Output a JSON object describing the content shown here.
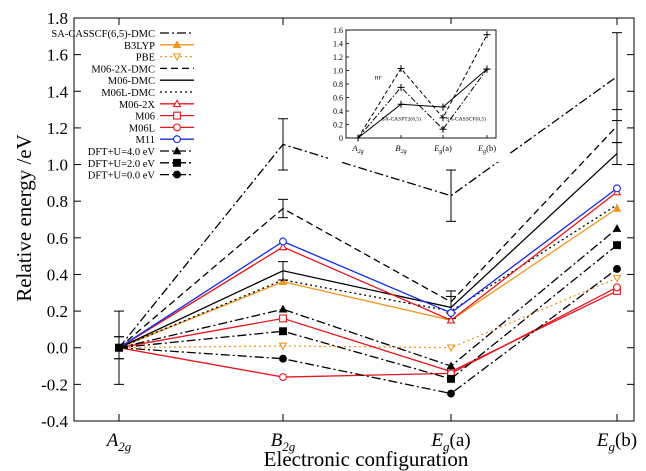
{
  "chart_data": {
    "type": "line",
    "title": "",
    "xlabel": "Electronic configuration",
    "ylabel": "Relative energy /eV",
    "categories": [
      {
        "base": "A",
        "sub": "2g",
        "suffix": ""
      },
      {
        "base": "B",
        "sub": "2g",
        "suffix": ""
      },
      {
        "base": "E",
        "sub": "g",
        "suffix": "(a)"
      },
      {
        "base": "E",
        "sub": "g",
        "suffix": "(b)"
      }
    ],
    "ylim": [
      -0.4,
      1.8
    ],
    "yticks": [
      "-0.4",
      "-0.2",
      "0.0",
      "0.2",
      "0.4",
      "0.6",
      "0.8",
      "1.0",
      "1.2",
      "1.4",
      "1.6",
      "1.8"
    ],
    "legend_position": "top-left",
    "series": [
      {
        "name": "SA-CASSCF(6,5)-DMC",
        "color": "#000000",
        "dash": "dashdot",
        "marker": "none",
        "values": [
          0.0,
          1.11,
          0.83,
          1.48
        ],
        "errors": [
          0.2,
          0.14,
          0.14,
          0.24
        ]
      },
      {
        "name": "B3LYP",
        "color": "#f0961e",
        "dash": "solid",
        "marker": "triangle-filled",
        "values": [
          0.0,
          0.36,
          0.15,
          0.76
        ]
      },
      {
        "name": "PBE",
        "color": "#f0961e",
        "dash": "dotted",
        "marker": "triangle-down-open",
        "values": [
          0.0,
          0.01,
          0.0,
          0.38
        ]
      },
      {
        "name": "M06-2X-DMC",
        "color": "#000000",
        "dash": "dashed",
        "marker": "none",
        "values": [
          0.0,
          0.76,
          0.25,
          1.21
        ],
        "errors": [
          0.06,
          0.05,
          0.06,
          0.09
        ]
      },
      {
        "name": "M06-DMC",
        "color": "#000000",
        "dash": "solid",
        "marker": "none",
        "values": [
          0.0,
          0.42,
          0.22,
          1.06
        ],
        "errors": [
          0.06,
          0.05,
          0.06,
          0.06
        ]
      },
      {
        "name": "M06L-DMC",
        "color": "#000000",
        "dash": "dotted",
        "marker": "none",
        "values": [
          0.0,
          0.37,
          0.2,
          0.78
        ]
      },
      {
        "name": "M06-2X",
        "color": "#e8141e",
        "dash": "solid",
        "marker": "triangle-open",
        "values": [
          0.0,
          0.55,
          0.15,
          0.85
        ]
      },
      {
        "name": "M06",
        "color": "#e8141e",
        "dash": "solid",
        "marker": "square-open",
        "values": [
          0.0,
          0.16,
          -0.13,
          0.31
        ]
      },
      {
        "name": "M06L",
        "color": "#e8141e",
        "dash": "solid",
        "marker": "circle-open",
        "values": [
          0.0,
          -0.16,
          -0.14,
          0.33
        ]
      },
      {
        "name": "M11",
        "color": "#1428e6",
        "dash": "solid",
        "marker": "circle-open",
        "values": [
          0.0,
          0.58,
          0.19,
          0.87
        ]
      },
      {
        "name": "DFT+U=4.0 eV",
        "color": "#000000",
        "dash": "dashdot",
        "marker": "triangle-filled",
        "values": [
          0.0,
          0.21,
          -0.1,
          0.65
        ]
      },
      {
        "name": "DFT+U=2.0 eV",
        "color": "#000000",
        "dash": "dashdot",
        "marker": "square-filled",
        "values": [
          0.0,
          0.09,
          -0.17,
          0.56
        ]
      },
      {
        "name": "DFT+U=0.0 eV",
        "color": "#000000",
        "dash": "dashdot",
        "marker": "circle-filled",
        "values": [
          0.0,
          -0.06,
          -0.25,
          0.43
        ]
      }
    ],
    "inset": {
      "categories": [
        {
          "base": "A",
          "sub": "2g",
          "suffix": ""
        },
        {
          "base": "B",
          "sub": "2g",
          "suffix": ""
        },
        {
          "base": "E",
          "sub": "g",
          "suffix": "(a)"
        },
        {
          "base": "E",
          "sub": "g",
          "suffix": "(b)"
        }
      ],
      "ylim": [
        0,
        1.6
      ],
      "yticks": [
        "0",
        "0.2",
        "0.4",
        "0.6",
        "0.8",
        "1.0",
        "1.2",
        "1.4",
        "1.6"
      ],
      "annotations": [
        {
          "text": "HF",
          "x": 0.55,
          "y": 0.87
        },
        {
          "text": "SA-CASPT2(6,5)",
          "x": 0.55,
          "y": 0.26
        },
        {
          "text": "SA-CASSCF(6,5)",
          "x": 2.05,
          "y": 0.26
        }
      ],
      "series": [
        {
          "name": "HF",
          "dash": "dashed",
          "values": [
            0.0,
            1.03,
            0.3,
            1.53
          ]
        },
        {
          "name": "SA-CASPT2(6,5)",
          "dash": "solid",
          "values": [
            0.0,
            0.5,
            0.46,
            1.02
          ]
        },
        {
          "name": "SA-CASSCF(6,5)",
          "dash": "dashdot",
          "values": [
            0.0,
            0.75,
            0.13,
            1.02
          ]
        }
      ]
    }
  }
}
